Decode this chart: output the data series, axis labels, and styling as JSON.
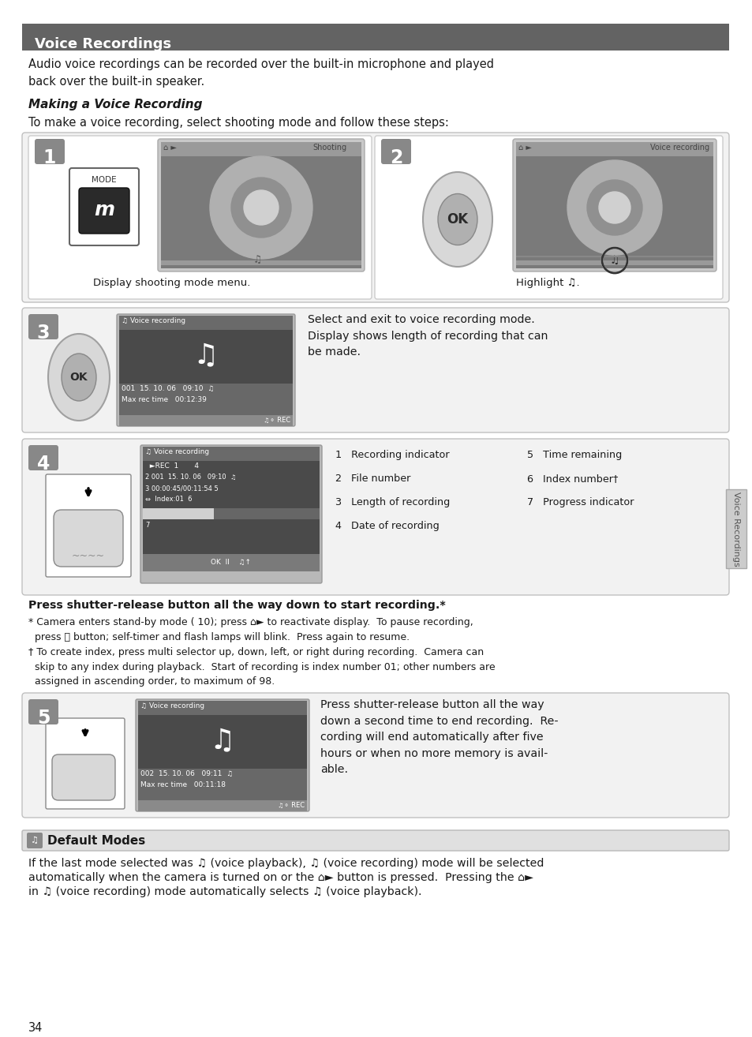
{
  "page_bg": "#ffffff",
  "header_bg": "#636363",
  "header_text": "Voice Recordings",
  "header_text_color": "#ffffff",
  "step_bg": "#888888",
  "text_color": "#1a1a1a",
  "para1": "Audio voice recordings can be recorded over the built-in microphone and played\nback over the built-in speaker.",
  "heading1": "Making a Voice Recording",
  "para2": "To make a voice recording, select shooting mode and follow these steps:",
  "step1_caption": "Display shooting mode menu.",
  "step2_caption": "Highlight ♫.",
  "step3_text": "Select and exit to voice recording mode.\nDisplay shows length of recording that can\nbe made.",
  "step4_caption": "Press shutter-release button all the way down to start recording.*",
  "step4_items_left": [
    "1   Recording indicator",
    "2   File number",
    "3   Length of recording",
    "4   Date of recording"
  ],
  "step4_items_right": [
    "5   Time remaining",
    "6   Index number†",
    "7   Progress indicator"
  ],
  "footnote1": "* Camera enters stand-by mode ( 10); press ⌂► to reactivate display.  To pause recording,\n  press ⓧ button; self-timer and flash lamps will blink.  Press again to resume.",
  "footnote2": "† To create index, press multi selector up, down, left, or right during recording.  Camera can\n  skip to any index during playback.  Start of recording is index number 01; other numbers are\n  assigned in ascending order, to maximum of 98.",
  "step5_text": "Press shutter-release button all the way\ndown a second time to end recording.  Re-\ncording will end automatically after five\nhours or when no more memory is avail-\nable.",
  "default_modes_title": "Default Modes",
  "default_modes_text1": "If the last mode selected was ♫ (voice playback), ♫ (voice recording) mode will be selected",
  "default_modes_text2": "automatically when the camera is turned on or the ⌂► button is pressed.  Pressing the ⌂►",
  "default_modes_text3": "in ♫ (voice recording) mode automatically selects ♫ (voice playback).",
  "page_number": "34",
  "side_label": "Voice Recordings"
}
